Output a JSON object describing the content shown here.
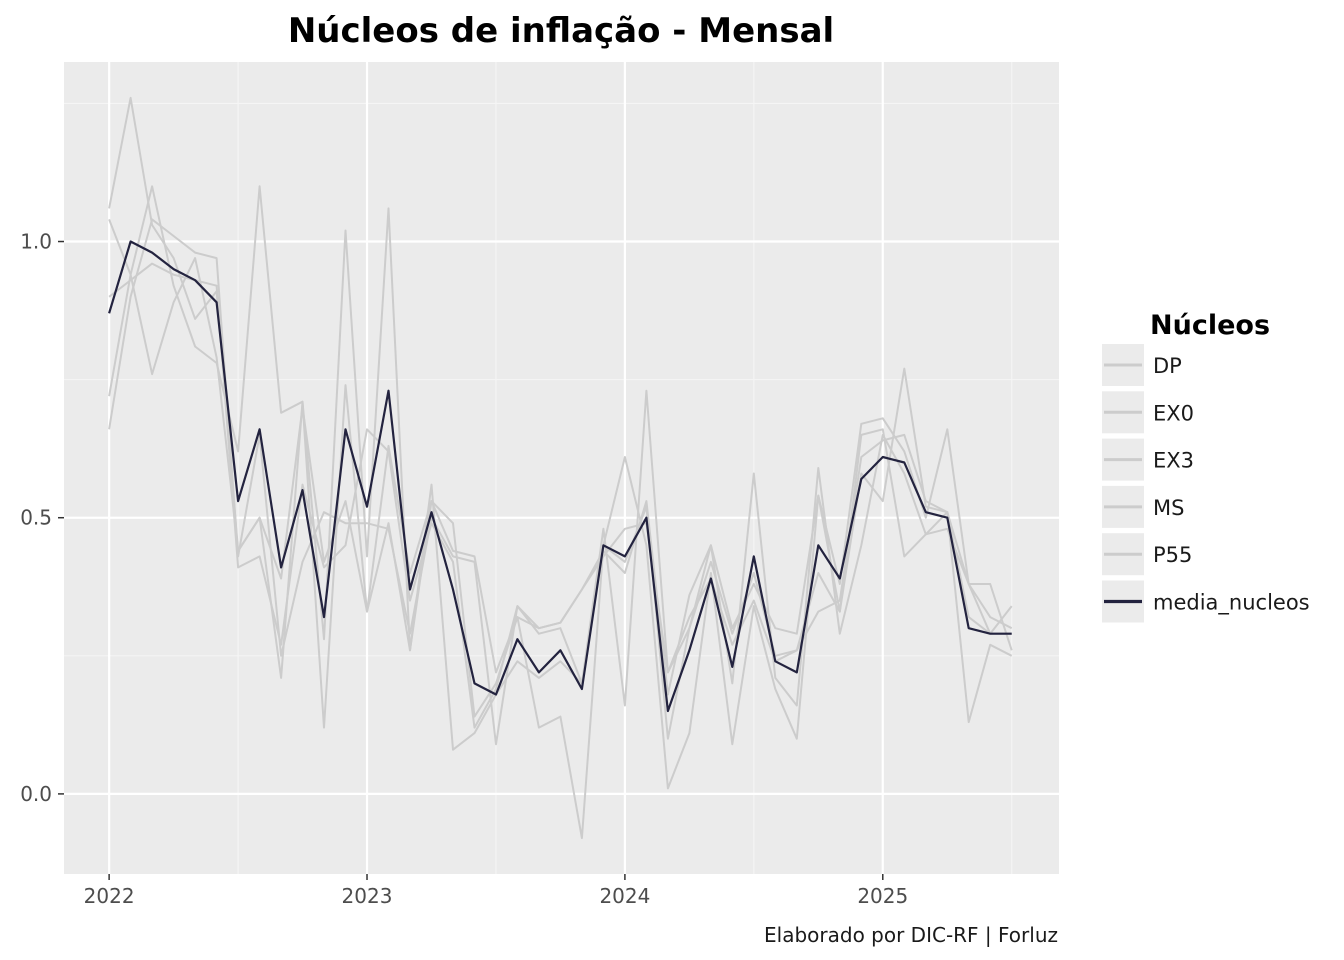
{
  "chart_data": {
    "type": "line",
    "title": "Núcleos de inflação - Mensal",
    "caption": "Elaborado por DIC-RF | Forluz",
    "xlabel": "",
    "ylabel": "",
    "x_start": "2022-01",
    "x_ticks": [
      {
        "label": "2022",
        "x": 0
      },
      {
        "label": "2023",
        "x": 12
      },
      {
        "label": "2024",
        "x": 24
      },
      {
        "label": "2025",
        "x": 36
      }
    ],
    "y_ticks": [
      {
        "label": "0.0",
        "y": 0.0
      },
      {
        "label": "0.5",
        "y": 0.5
      },
      {
        "label": "1.0",
        "y": 1.0
      }
    ],
    "xlim": [
      -2.1,
      44.2
    ],
    "ylim": [
      -0.145,
      1.325
    ],
    "grid": true,
    "legend_title": "Núcleos",
    "legend_position": "right",
    "colors": {
      "panel": "#ebebeb",
      "grid_major": "#ffffff",
      "grid_minor": "#f5f5f5",
      "nucleo_line": "#cccccc",
      "media_line": "#23233f"
    },
    "series": [
      {
        "name": "DP",
        "values": [
          1.04,
          0.94,
          0.76,
          0.89,
          0.97,
          0.79,
          0.44,
          0.5,
          0.21,
          0.71,
          0.12,
          0.74,
          0.33,
          0.49,
          0.26,
          0.53,
          0.44,
          0.43,
          0.22,
          0.32,
          0.3,
          0.31,
          0.37,
          0.44,
          0.4,
          0.53,
          0.18,
          0.36,
          0.45,
          0.2,
          0.58,
          0.21,
          0.16,
          0.59,
          0.29,
          0.45,
          0.65,
          0.58,
          0.47,
          0.48,
          0.38,
          0.38,
          0.26
        ]
      },
      {
        "name": "EX0",
        "values": [
          0.72,
          0.94,
          1.1,
          0.92,
          0.81,
          0.78,
          0.62,
          1.1,
          0.69,
          0.71,
          0.28,
          1.02,
          0.43,
          1.06,
          0.26,
          0.56,
          0.08,
          0.11,
          0.18,
          0.24,
          0.21,
          0.24,
          0.2,
          0.48,
          0.16,
          0.73,
          0.22,
          0.3,
          0.45,
          0.3,
          0.38,
          0.3,
          0.29,
          0.54,
          0.33,
          0.58,
          0.53,
          0.77,
          0.52,
          0.51,
          0.13,
          0.27,
          0.25
        ]
      },
      {
        "name": "EX3",
        "values": [
          0.66,
          0.9,
          1.04,
          1.01,
          0.98,
          0.97,
          0.43,
          0.65,
          0.25,
          0.42,
          0.51,
          0.49,
          0.49,
          0.48,
          0.29,
          0.5,
          0.43,
          0.42,
          0.09,
          0.34,
          0.3,
          0.31,
          0.37,
          0.43,
          0.48,
          0.49,
          0.22,
          0.32,
          0.39,
          0.27,
          0.35,
          0.24,
          0.26,
          0.33,
          0.35,
          0.61,
          0.64,
          0.65,
          0.53,
          0.51,
          0.38,
          0.29,
          0.34
        ]
      },
      {
        "name": "MS",
        "values": [
          0.9,
          0.93,
          0.96,
          0.94,
          0.93,
          0.92,
          0.41,
          0.43,
          0.27,
          0.56,
          0.41,
          0.45,
          0.66,
          0.62,
          0.35,
          0.49,
          0.42,
          0.12,
          0.19,
          0.34,
          0.29,
          0.3,
          0.2,
          0.45,
          0.42,
          0.52,
          0.1,
          0.3,
          0.42,
          0.29,
          0.4,
          0.25,
          0.26,
          0.4,
          0.33,
          0.65,
          0.66,
          0.43,
          0.47,
          0.51,
          0.32,
          0.29,
          0.29
        ]
      },
      {
        "name": "P55",
        "values": [
          1.06,
          1.26,
          1.03,
          0.97,
          0.86,
          0.91,
          0.44,
          0.5,
          0.39,
          0.7,
          0.42,
          0.53,
          0.33,
          0.63,
          0.4,
          0.53,
          0.49,
          0.14,
          0.2,
          0.32,
          0.12,
          0.14,
          -0.08,
          0.45,
          0.61,
          0.45,
          0.01,
          0.11,
          0.4,
          0.09,
          0.34,
          0.19,
          0.1,
          0.54,
          0.38,
          0.67,
          0.68,
          0.62,
          0.5,
          0.66,
          0.38,
          0.32,
          0.3
        ]
      },
      {
        "name": "media_nucleos",
        "values": [
          0.87,
          1.0,
          0.98,
          0.95,
          0.93,
          0.89,
          0.53,
          0.66,
          0.41,
          0.55,
          0.32,
          0.66,
          0.52,
          0.73,
          0.37,
          0.51,
          0.37,
          0.2,
          0.18,
          0.28,
          0.22,
          0.26,
          0.19,
          0.45,
          0.43,
          0.5,
          0.15,
          0.26,
          0.39,
          0.23,
          0.43,
          0.24,
          0.22,
          0.45,
          0.39,
          0.57,
          0.61,
          0.6,
          0.51,
          0.5,
          0.3,
          0.29,
          0.29
        ]
      }
    ]
  }
}
